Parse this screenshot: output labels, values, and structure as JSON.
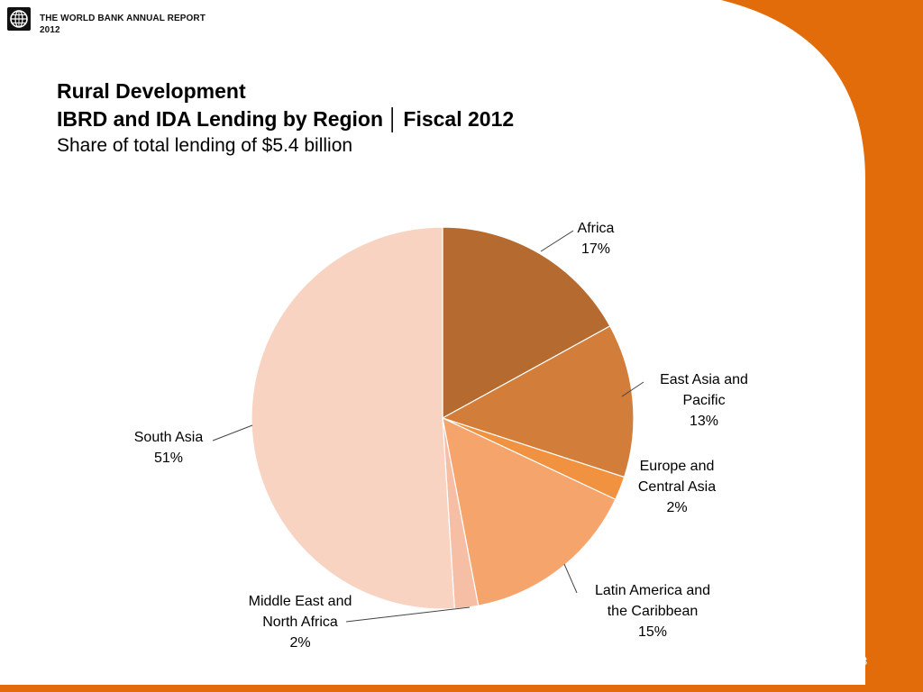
{
  "header": {
    "line1": "THE WORLD BANK  ANNUAL REPORT",
    "line2": "2012"
  },
  "title": {
    "line1": "Rural Development",
    "line2_a": "IBRD and IDA Lending by Region",
    "line2_sep": "│",
    "line2_b": "Fiscal 2012",
    "line3": "Share of total lending of $5.4 billion"
  },
  "page_number": "43",
  "colors": {
    "accent_orange": "#E36C0A",
    "page_background": "#ffffff"
  },
  "chart_data": {
    "type": "pie",
    "start_angle_deg": 0,
    "direction": "clockwise",
    "slices": [
      {
        "label_lines": [
          "Africa"
        ],
        "value_label": "17%",
        "value": 17,
        "color": "#B56A30"
      },
      {
        "label_lines": [
          "East Asia and",
          "Pacific"
        ],
        "value_label": "13%",
        "value": 13,
        "color": "#D27D3A"
      },
      {
        "label_lines": [
          "Europe and",
          "Central Asia"
        ],
        "value_label": "2%",
        "value": 2,
        "color": "#F0923F"
      },
      {
        "label_lines": [
          "Latin America and",
          "the Caribbean"
        ],
        "value_label": "15%",
        "value": 15,
        "color": "#F5A56C"
      },
      {
        "label_lines": [
          "Middle East and",
          "North Africa"
        ],
        "value_label": "2%",
        "value": 2,
        "color": "#F6BEA4"
      },
      {
        "label_lines": [
          "South Asia"
        ],
        "value_label": "51%",
        "value": 51,
        "color": "#F8D3C2"
      }
    ]
  }
}
